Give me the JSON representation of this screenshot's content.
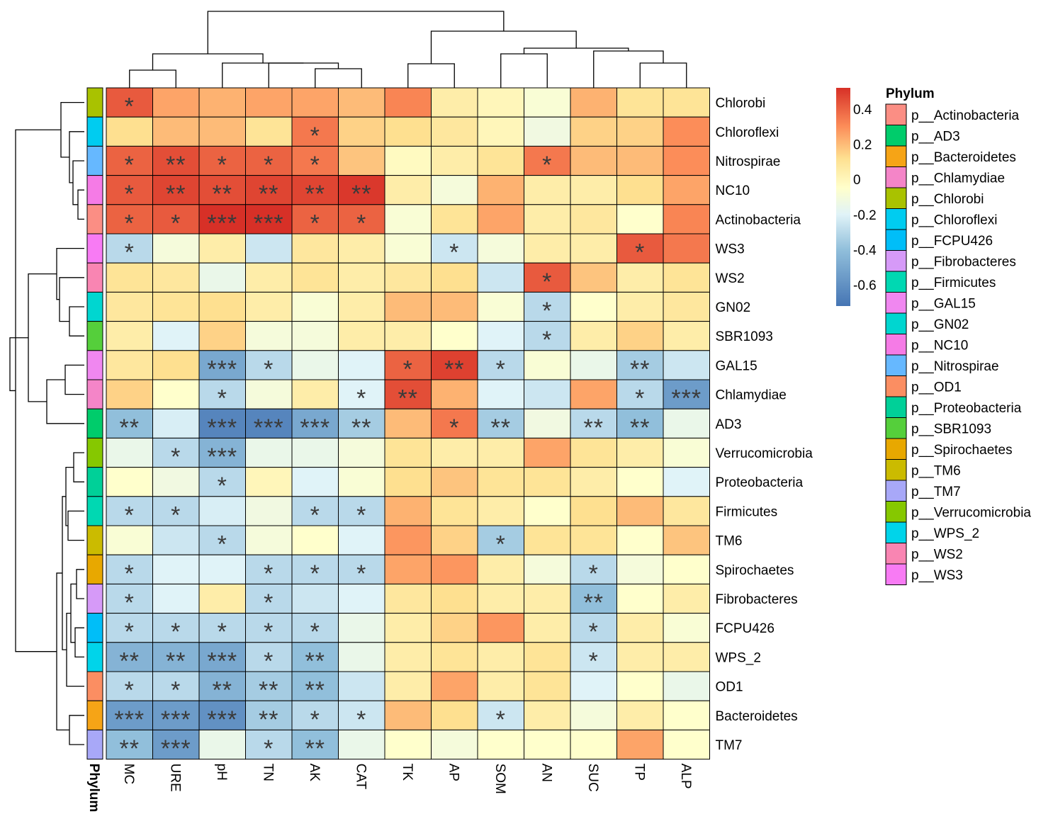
{
  "chart_data": {
    "type": "heatmap",
    "title": "",
    "columns": [
      "MC",
      "URE",
      "pH",
      "TN",
      "AK",
      "CAT",
      "TK",
      "AP",
      "SOM",
      "AN",
      "SUC",
      "TP",
      "ALP"
    ],
    "rows": [
      "Chlorobi",
      "Chloroflexi",
      "Nitrospirae",
      "NC10",
      "Actinobacteria",
      "WS3",
      "WS2",
      "GN02",
      "SBR1093",
      "GAL15",
      "Chlamydiae",
      "AD3",
      "Verrucomicrobia",
      "Proteobacteria",
      "Firmicutes",
      "TM6",
      "Spirochaetes",
      "Fibrobacteres",
      "FCPU426",
      "WPS_2",
      "OD1",
      "Bacteroidetes",
      "TM7"
    ],
    "values": [
      [
        0.42,
        0.25,
        0.22,
        0.25,
        0.25,
        0.2,
        0.32,
        0.05,
        0.0,
        -0.08,
        0.22,
        0.1,
        0.1
      ],
      [
        0.12,
        0.2,
        0.2,
        0.1,
        0.35,
        0.15,
        0.12,
        0.08,
        0.0,
        -0.12,
        0.15,
        0.15,
        0.3
      ],
      [
        0.4,
        0.45,
        0.4,
        0.4,
        0.35,
        0.18,
        -0.02,
        0.05,
        0.1,
        0.35,
        0.2,
        0.2,
        0.3
      ],
      [
        0.42,
        0.47,
        0.45,
        0.47,
        0.47,
        0.5,
        0.05,
        -0.1,
        0.22,
        0.05,
        0.05,
        0.12,
        0.25
      ],
      [
        0.4,
        0.42,
        0.55,
        0.55,
        0.4,
        0.4,
        -0.08,
        0.1,
        0.25,
        0.05,
        0.08,
        -0.05,
        0.32
      ],
      [
        -0.3,
        -0.1,
        0.05,
        -0.25,
        0.08,
        0.05,
        -0.08,
        -0.25,
        -0.1,
        0.05,
        0.05,
        0.42,
        0.35
      ],
      [
        0.1,
        0.08,
        -0.15,
        0.05,
        0.1,
        0.05,
        0.08,
        0.12,
        -0.25,
        0.42,
        0.18,
        0.05,
        0.1
      ],
      [
        0.08,
        0.1,
        0.12,
        0.05,
        -0.08,
        0.05,
        0.2,
        0.2,
        -0.08,
        -0.3,
        -0.05,
        0.05,
        0.08
      ],
      [
        0.05,
        -0.2,
        0.15,
        -0.1,
        -0.1,
        0.05,
        0.05,
        -0.05,
        -0.2,
        -0.3,
        0.05,
        0.15,
        0.05
      ],
      [
        0.08,
        0.12,
        -0.5,
        -0.3,
        -0.15,
        -0.2,
        0.4,
        0.48,
        -0.3,
        -0.08,
        -0.15,
        -0.35,
        -0.25
      ],
      [
        0.15,
        -0.05,
        -0.3,
        -0.1,
        0.05,
        -0.2,
        0.45,
        0.22,
        -0.2,
        -0.25,
        0.25,
        -0.3,
        -0.55
      ],
      [
        -0.4,
        -0.22,
        -0.65,
        -0.65,
        -0.5,
        -0.35,
        0.2,
        0.35,
        -0.35,
        -0.12,
        -0.3,
        -0.4,
        -0.15
      ],
      [
        -0.15,
        -0.3,
        -0.45,
        -0.15,
        -0.15,
        -0.1,
        0.1,
        0.05,
        0.05,
        0.25,
        0.1,
        0.05,
        -0.08
      ],
      [
        -0.05,
        -0.12,
        -0.3,
        0.0,
        -0.2,
        -0.08,
        0.12,
        0.18,
        0.1,
        0.1,
        0.05,
        -0.05,
        -0.2
      ],
      [
        -0.3,
        -0.3,
        -0.22,
        -0.12,
        -0.3,
        -0.3,
        0.22,
        0.1,
        0.05,
        -0.05,
        0.12,
        0.2,
        0.08
      ],
      [
        -0.08,
        -0.25,
        -0.3,
        -0.1,
        -0.05,
        -0.2,
        0.28,
        0.15,
        -0.35,
        0.1,
        0.1,
        -0.05,
        0.18
      ],
      [
        -0.3,
        -0.2,
        -0.2,
        -0.3,
        -0.3,
        -0.3,
        0.25,
        0.28,
        0.05,
        -0.1,
        -0.3,
        -0.1,
        -0.05
      ],
      [
        -0.3,
        -0.2,
        0.05,
        -0.3,
        -0.25,
        -0.2,
        0.08,
        0.12,
        0.05,
        0.05,
        -0.4,
        -0.05,
        0.05
      ],
      [
        -0.3,
        -0.3,
        -0.3,
        -0.3,
        -0.3,
        -0.15,
        0.05,
        0.15,
        0.28,
        0.05,
        -0.3,
        0.05,
        -0.08
      ],
      [
        -0.45,
        -0.45,
        -0.5,
        -0.3,
        -0.4,
        -0.15,
        0.05,
        0.1,
        0.05,
        0.1,
        -0.25,
        0.05,
        0.05
      ],
      [
        -0.3,
        -0.3,
        -0.45,
        -0.35,
        -0.4,
        -0.25,
        0.05,
        0.25,
        0.05,
        0.1,
        -0.2,
        -0.05,
        -0.15
      ],
      [
        -0.55,
        -0.55,
        -0.6,
        -0.35,
        -0.3,
        -0.25,
        0.2,
        0.12,
        -0.25,
        0.05,
        -0.1,
        0.05,
        -0.05
      ],
      [
        -0.4,
        -0.55,
        -0.15,
        -0.3,
        -0.4,
        -0.15,
        -0.05,
        -0.1,
        -0.05,
        -0.05,
        -0.05,
        0.25,
        -0.05
      ]
    ],
    "significance": [
      [
        "*",
        "",
        "",
        "",
        "",
        "",
        "",
        "",
        "",
        "",
        "",
        "",
        ""
      ],
      [
        "",
        "",
        "",
        "",
        "*",
        "",
        "",
        "",
        "",
        "",
        "",
        "",
        ""
      ],
      [
        "*",
        "**",
        "*",
        "*",
        "*",
        "",
        "",
        "",
        "",
        "*",
        "",
        "",
        ""
      ],
      [
        "*",
        "**",
        "**",
        "**",
        "**",
        "**",
        "",
        "",
        "",
        "",
        "",
        "",
        ""
      ],
      [
        "*",
        "*",
        "***",
        "***",
        "*",
        "*",
        "",
        "",
        "",
        "",
        "",
        "",
        ""
      ],
      [
        "*",
        "",
        "",
        "",
        "",
        "",
        "",
        "*",
        "",
        "",
        "",
        "*",
        ""
      ],
      [
        "",
        "",
        "",
        "",
        "",
        "",
        "",
        "",
        "",
        "*",
        "",
        "",
        ""
      ],
      [
        "",
        "",
        "",
        "",
        "",
        "",
        "",
        "",
        "",
        "*",
        "",
        "",
        ""
      ],
      [
        "",
        "",
        "",
        "",
        "",
        "",
        "",
        "",
        "",
        "*",
        "",
        "",
        ""
      ],
      [
        "",
        "",
        "***",
        "*",
        "",
        "",
        "*",
        "**",
        "*",
        "",
        "",
        "**",
        ""
      ],
      [
        "",
        "",
        "*",
        "",
        "",
        "*",
        "**",
        "",
        "",
        "",
        "",
        "*",
        "***"
      ],
      [
        "**",
        "",
        "***",
        "***",
        "***",
        "**",
        "",
        "*",
        "**",
        "",
        "**",
        "**",
        ""
      ],
      [
        "",
        "*",
        "***",
        "",
        "",
        "",
        "",
        "",
        "",
        "",
        "",
        "",
        ""
      ],
      [
        "",
        "",
        "*",
        "",
        "",
        "",
        "",
        "",
        "",
        "",
        "",
        "",
        ""
      ],
      [
        "*",
        "*",
        "",
        "",
        "*",
        "*",
        "",
        "",
        "",
        "",
        "",
        "",
        ""
      ],
      [
        "",
        "",
        "*",
        "",
        "",
        "",
        "",
        "",
        "*",
        "",
        "",
        "",
        ""
      ],
      [
        "*",
        "",
        "",
        "*",
        "*",
        "*",
        "",
        "",
        "",
        "",
        "*",
        "",
        ""
      ],
      [
        "*",
        "",
        "",
        "*",
        "",
        "",
        "",
        "",
        "",
        "",
        "**",
        "",
        ""
      ],
      [
        "*",
        "*",
        "*",
        "*",
        "*",
        "",
        "",
        "",
        "",
        "",
        "*",
        "",
        ""
      ],
      [
        "**",
        "**",
        "***",
        "*",
        "**",
        "",
        "",
        "",
        "",
        "",
        "*",
        "",
        ""
      ],
      [
        "*",
        "*",
        "**",
        "**",
        "**",
        "",
        "",
        "",
        "",
        "",
        "",
        "",
        ""
      ],
      [
        "***",
        "***",
        "***",
        "**",
        "*",
        "*",
        "",
        "",
        "*",
        "",
        "",
        "",
        ""
      ],
      [
        "**",
        "***",
        "",
        "*",
        "**",
        "",
        "",
        "",
        "",
        "",
        "",
        "",
        ""
      ]
    ],
    "row_annotation_label": "Phylum",
    "row_phylum_colors": [
      "#A9C200",
      "#00CCF0",
      "#66B8FF",
      "#F57BE6",
      "#FB8E84",
      "#F87BF4",
      "#F985B2",
      "#00D6D0",
      "#55CF3B",
      "#F087F0",
      "#F485C8",
      "#00CC6B",
      "#86C800",
      "#00D098",
      "#00D8B2",
      "#CBBB00",
      "#E8A800",
      "#D69AF8",
      "#00BEF8",
      "#00D4EA",
      "#FB8E62",
      "#F6A416",
      "#A8A8F8"
    ],
    "colorbar": {
      "ticks": [
        "0.4",
        "0.2",
        "0",
        "-0.2",
        "-0.4",
        "-0.6"
      ],
      "tick_values": [
        0.4,
        0.2,
        0,
        -0.2,
        -0.4,
        -0.6
      ],
      "range": [
        -0.72,
        0.52
      ],
      "stops": [
        {
          "v": -0.72,
          "c": "#4575B4"
        },
        {
          "v": -0.4,
          "c": "#91BFDB"
        },
        {
          "v": -0.2,
          "c": "#E0F3F8"
        },
        {
          "v": -0.05,
          "c": "#FFFFCC"
        },
        {
          "v": 0.12,
          "c": "#FEE090"
        },
        {
          "v": 0.3,
          "c": "#FC8D59"
        },
        {
          "v": 0.52,
          "c": "#D73027"
        }
      ]
    },
    "legend": {
      "title": "Phylum",
      "items": [
        {
          "label": "p__Actinobacteria",
          "color": "#FB8E84"
        },
        {
          "label": "p__AD3",
          "color": "#00CC6B"
        },
        {
          "label": "p__Bacteroidetes",
          "color": "#F6A416"
        },
        {
          "label": "p__Chlamydiae",
          "color": "#F485C8"
        },
        {
          "label": "p__Chlorobi",
          "color": "#A9C200"
        },
        {
          "label": "p__Chloroflexi",
          "color": "#00CCF0"
        },
        {
          "label": "p__FCPU426",
          "color": "#00BEF8"
        },
        {
          "label": "p__Fibrobacteres",
          "color": "#D69AF8"
        },
        {
          "label": "p__Firmicutes",
          "color": "#00D8B2"
        },
        {
          "label": "p__GAL15",
          "color": "#F087F0"
        },
        {
          "label": "p__GN02",
          "color": "#00D6D0"
        },
        {
          "label": "p__NC10",
          "color": "#F57BE6"
        },
        {
          "label": "p__Nitrospirae",
          "color": "#66B8FF"
        },
        {
          "label": "p__OD1",
          "color": "#FB8E62"
        },
        {
          "label": "p__Proteobacteria",
          "color": "#00D098"
        },
        {
          "label": "p__SBR1093",
          "color": "#55CF3B"
        },
        {
          "label": "p__Spirochaetes",
          "color": "#E8A800"
        },
        {
          "label": "p__TM6",
          "color": "#CBBB00"
        },
        {
          "label": "p__TM7",
          "color": "#A8A8F8"
        },
        {
          "label": "p__Verrucomicrobia",
          "color": "#86C800"
        },
        {
          "label": "p__WPS_2",
          "color": "#00D4EA"
        },
        {
          "label": "p__WS2",
          "color": "#F985B2"
        },
        {
          "label": "p__WS3",
          "color": "#F87BF4"
        }
      ]
    },
    "column_dendrogram_order": [
      "MC",
      "URE",
      "pH",
      "TN",
      "AK",
      "CAT",
      "TK",
      "AP",
      "SOM",
      "AN",
      "SUC",
      "TP",
      "ALP"
    ],
    "row_dendrogram_order": [
      "Chlorobi",
      "Chloroflexi",
      "Nitrospirae",
      "NC10",
      "Actinobacteria",
      "WS3",
      "WS2",
      "GN02",
      "SBR1093",
      "GAL15",
      "Chlamydiae",
      "AD3",
      "Verrucomicrobia",
      "Proteobacteria",
      "Firmicutes",
      "TM6",
      "Spirochaetes",
      "Fibrobacteres",
      "FCPU426",
      "WPS_2",
      "OD1",
      "Bacteroidetes",
      "TM7"
    ]
  }
}
